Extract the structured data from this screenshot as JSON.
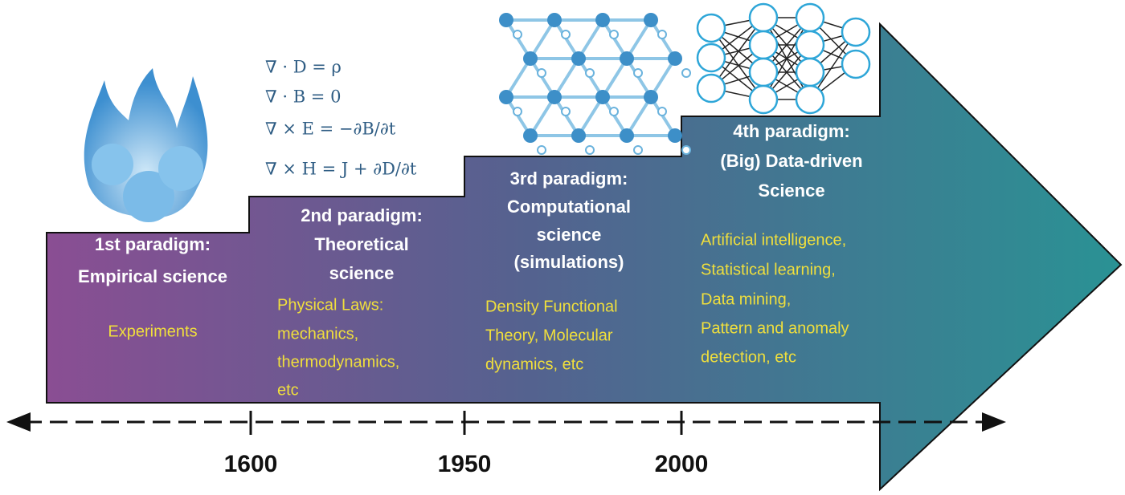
{
  "paradigms": [
    {
      "title": [
        "1st paradigm:",
        "Empirical science"
      ],
      "items": [
        "Experiments"
      ]
    },
    {
      "title": [
        "2nd paradigm:",
        "Theoretical",
        "science"
      ],
      "items": [
        "Physical Laws:",
        "mechanics,",
        "thermodynamics,",
        "etc"
      ]
    },
    {
      "title": [
        "3rd paradigm:",
        "Computational",
        "science",
        "(simulations)"
      ],
      "items": [
        "Density Functional",
        "Theory, Molecular",
        "dynamics, etc"
      ]
    },
    {
      "title": [
        "4th paradigm:",
        "(Big) Data-driven",
        "Science"
      ],
      "items": [
        "Artificial intelligence,",
        "Statistical learning,",
        "Data mining,",
        "Pattern and anomaly",
        "detection, etc"
      ]
    }
  ],
  "equations": [
    "∇ · D = ρ",
    "∇ · B = 0",
    "∇ × E = −∂B/∂t",
    "∇ × H = J + ∂D/∂t"
  ],
  "timeline": [
    "1600",
    "1950",
    "2000"
  ]
}
